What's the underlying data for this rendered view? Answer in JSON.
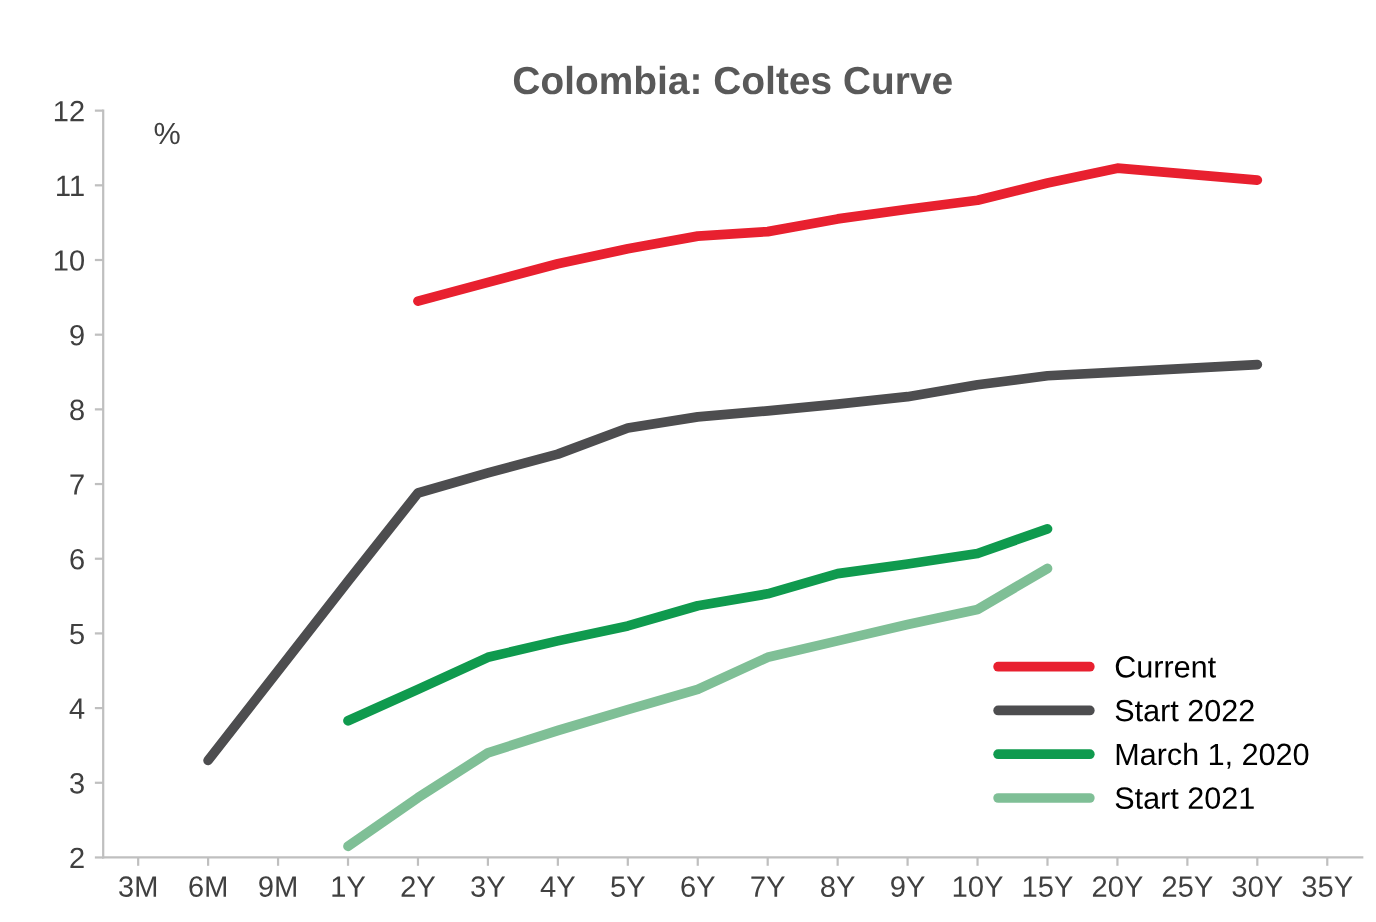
{
  "chart_data": {
    "type": "line",
    "title": "Colombia: Coltes Curve",
    "ylabel": "%",
    "categories": [
      "3M",
      "6M",
      "9M",
      "1Y",
      "2Y",
      "3Y",
      "4Y",
      "5Y",
      "6Y",
      "7Y",
      "8Y",
      "9Y",
      "10Y",
      "15Y",
      "20Y",
      "25Y",
      "30Y",
      "35Y"
    ],
    "series": [
      {
        "name": "Current",
        "color": "#e8202f",
        "values": [
          null,
          null,
          null,
          null,
          9.45,
          9.7,
          9.95,
          10.15,
          10.32,
          10.38,
          10.55,
          10.68,
          10.8,
          11.03,
          11.23,
          11.15,
          11.07,
          null
        ]
      },
      {
        "name": "Start 2022",
        "color": "#4d4d4f",
        "values": [
          null,
          3.3,
          null,
          5.7,
          6.88,
          7.15,
          7.4,
          7.75,
          7.9,
          7.98,
          8.07,
          8.17,
          8.33,
          8.45,
          8.5,
          8.55,
          8.6,
          null
        ]
      },
      {
        "name": "March 1, 2020",
        "color": "#0f9a4e",
        "values": [
          null,
          null,
          null,
          3.83,
          4.25,
          4.68,
          4.9,
          5.1,
          5.37,
          5.53,
          5.8,
          5.93,
          6.07,
          6.4,
          null,
          null,
          null,
          null
        ]
      },
      {
        "name": "Start 2021",
        "color": "#7fbf96",
        "values": [
          null,
          null,
          null,
          2.15,
          2.8,
          3.4,
          3.7,
          3.98,
          4.25,
          4.68,
          4.9,
          5.12,
          5.32,
          5.87,
          null,
          null,
          null,
          null
        ]
      }
    ],
    "ylim": [
      2,
      12
    ],
    "yticks": [
      2,
      3,
      4,
      5,
      6,
      7,
      8,
      9,
      10,
      11,
      12
    ],
    "grid": false,
    "legend": "bottom right",
    "marker": "none",
    "line_style": "solid"
  }
}
